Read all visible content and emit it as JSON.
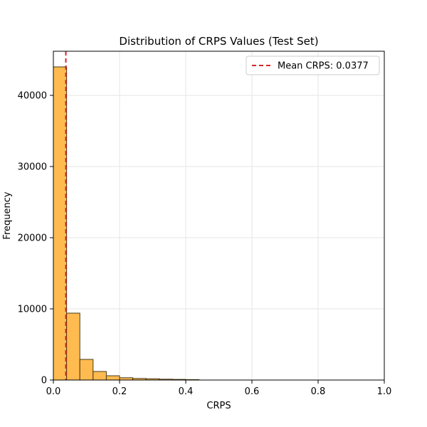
{
  "chart_data": {
    "type": "bar",
    "title": "Distribution of CRPS Values (Test Set)",
    "xlabel": "CRPS",
    "ylabel": "Frequency",
    "xlim": [
      0,
      1.0
    ],
    "ylim": [
      0,
      46200
    ],
    "x_ticks": [
      0.0,
      0.2,
      0.4,
      0.6,
      0.8,
      1.0
    ],
    "x_tick_labels": [
      "0.0",
      "0.2",
      "0.4",
      "0.6",
      "0.8",
      "1.0"
    ],
    "y_ticks": [
      0,
      10000,
      20000,
      30000,
      40000
    ],
    "y_tick_labels": [
      "0",
      "10000",
      "20000",
      "30000",
      "40000"
    ],
    "bin_width": 0.04,
    "bins": [
      {
        "start": 0.0,
        "end": 0.04,
        "count": 44000
      },
      {
        "start": 0.04,
        "end": 0.08,
        "count": 9400
      },
      {
        "start": 0.08,
        "end": 0.12,
        "count": 2900
      },
      {
        "start": 0.12,
        "end": 0.16,
        "count": 1200
      },
      {
        "start": 0.16,
        "end": 0.2,
        "count": 600
      },
      {
        "start": 0.2,
        "end": 0.24,
        "count": 320
      },
      {
        "start": 0.24,
        "end": 0.28,
        "count": 220
      },
      {
        "start": 0.28,
        "end": 0.32,
        "count": 180
      },
      {
        "start": 0.32,
        "end": 0.36,
        "count": 120
      },
      {
        "start": 0.36,
        "end": 0.4,
        "count": 90
      },
      {
        "start": 0.4,
        "end": 0.44,
        "count": 60
      }
    ],
    "mean_line": {
      "x": 0.0377,
      "label": "Mean CRPS: 0.0377",
      "color": "#d62728"
    },
    "legend": {
      "position": "top-right",
      "entries": [
        "Mean CRPS: 0.0377"
      ]
    },
    "grid": true,
    "bar_color": "#ffb43c",
    "bar_edge_color": "#4a3a1a"
  }
}
